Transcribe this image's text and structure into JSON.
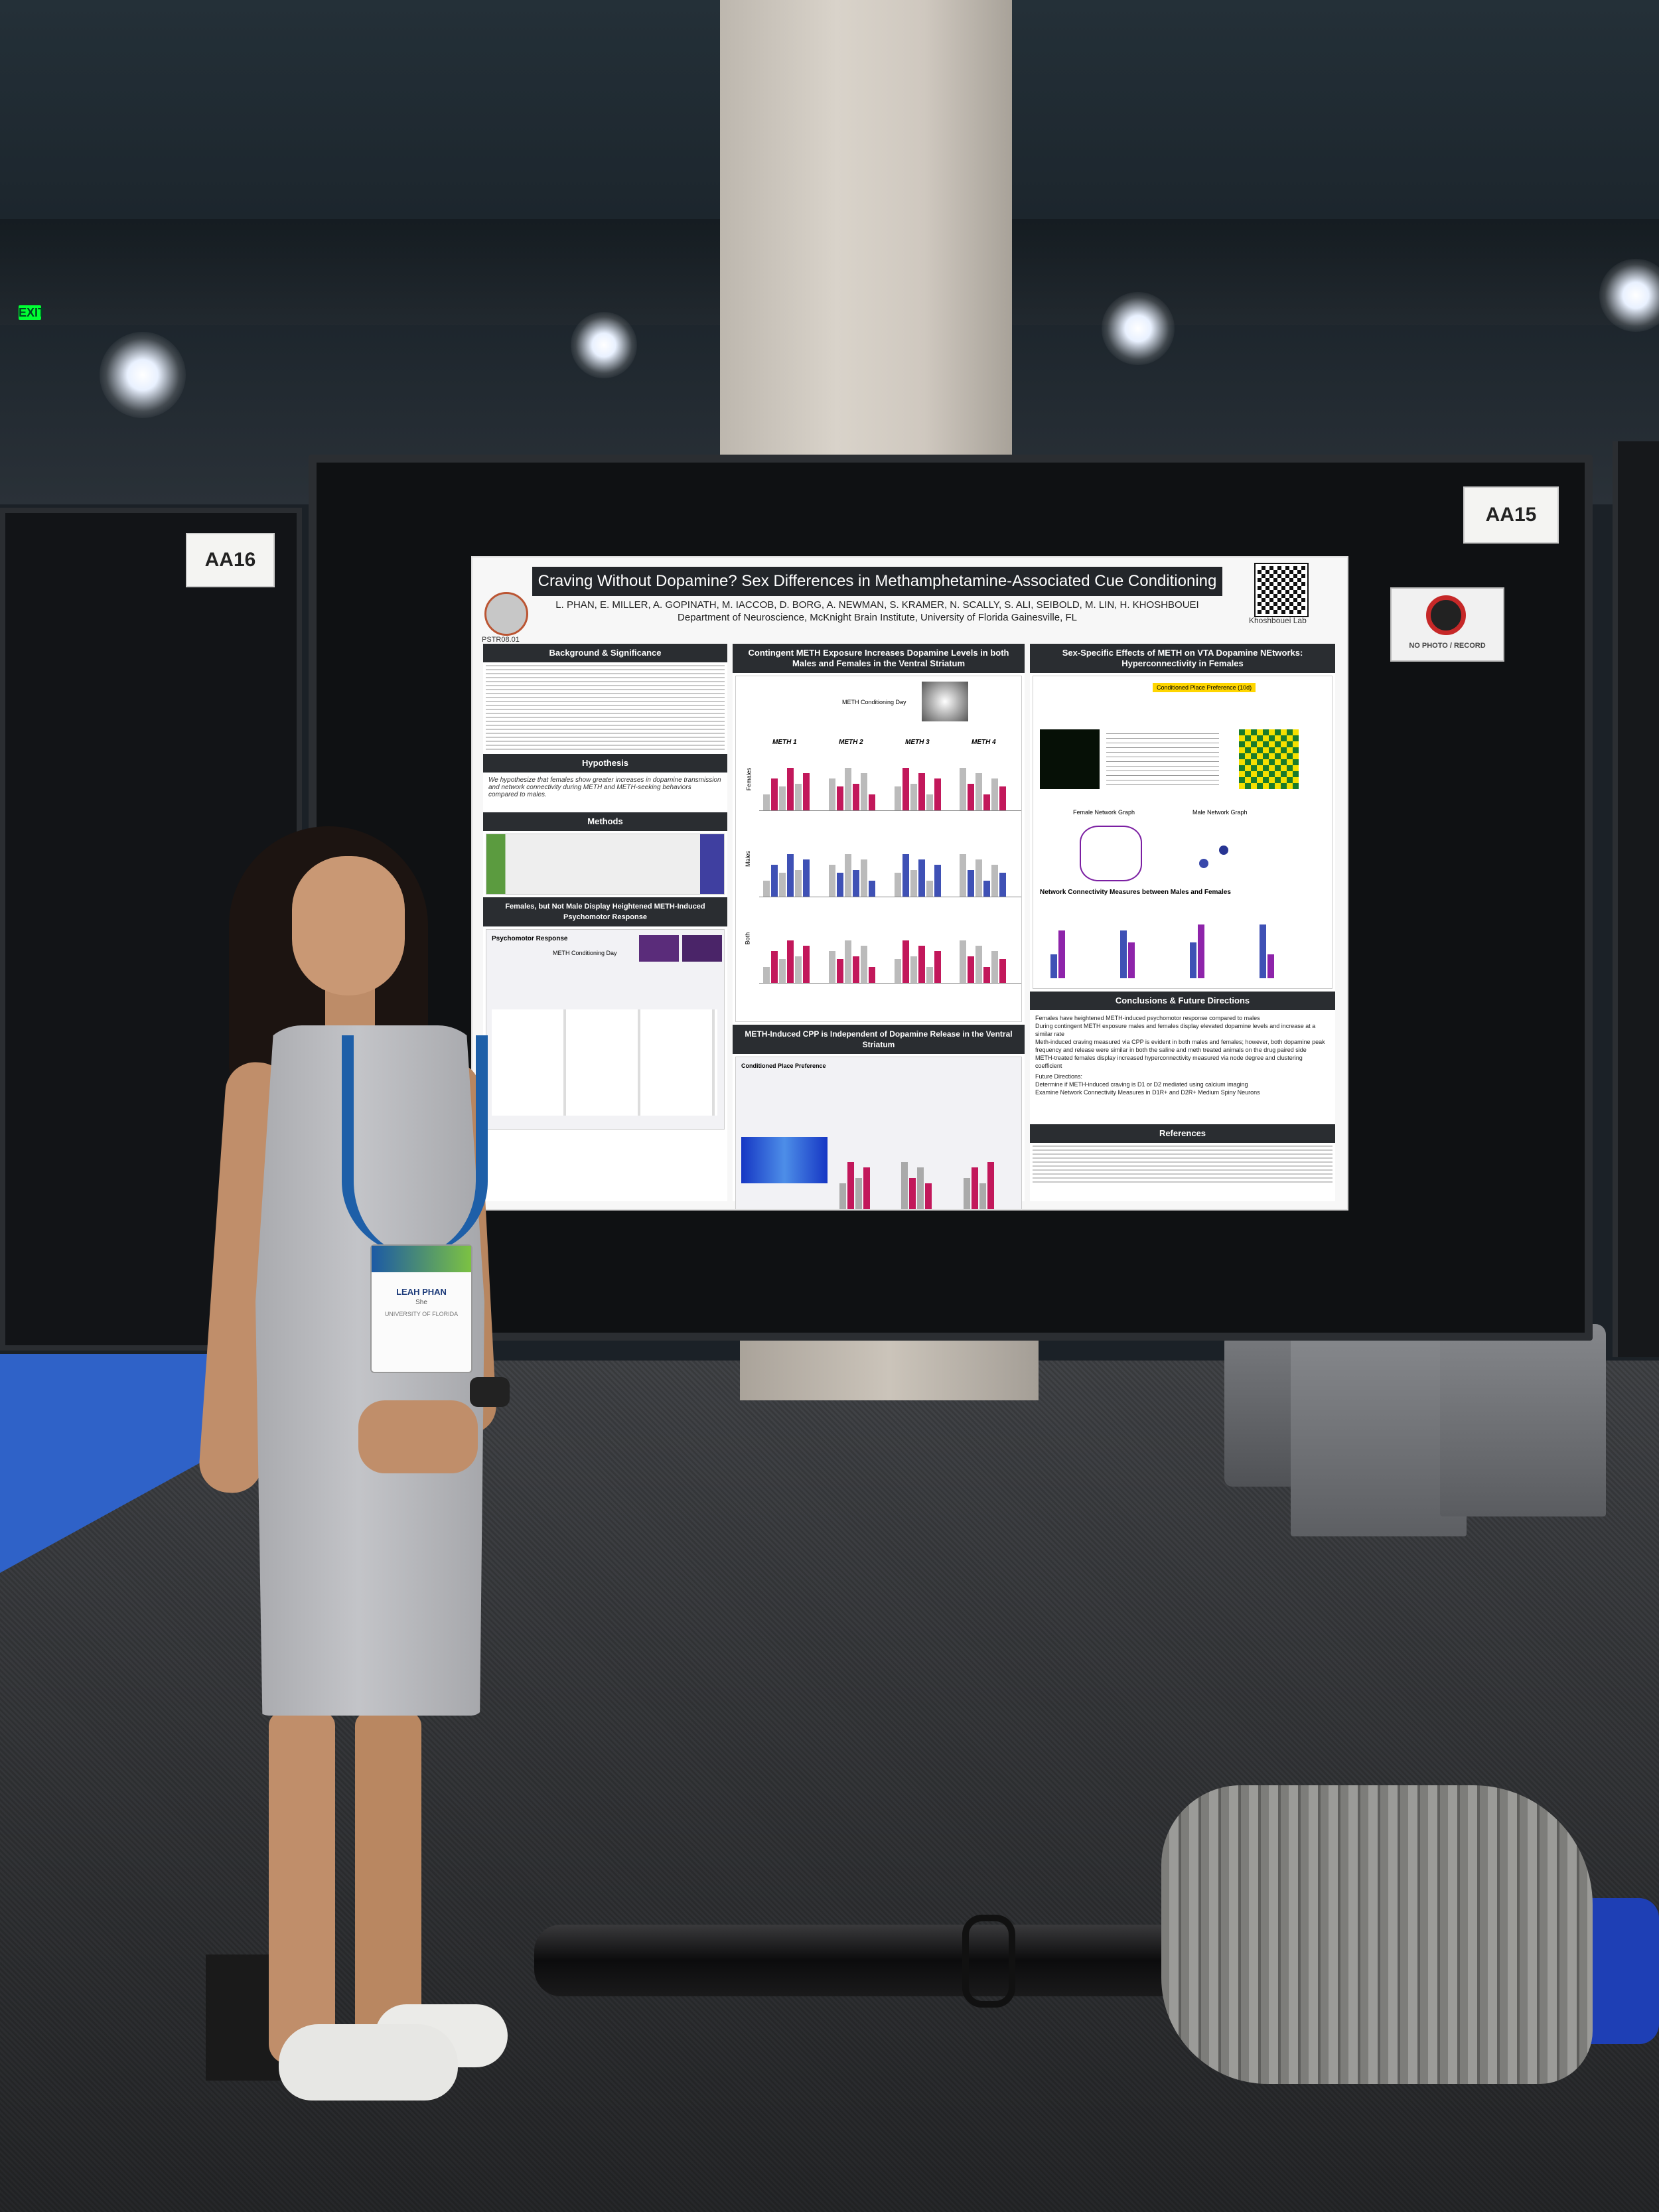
{
  "booths": {
    "left_label": "AA16",
    "right_label": "AA15"
  },
  "exit_sign": "EXIT",
  "no_photo_sign": "NO PHOTO / RECORD",
  "poster": {
    "id": "PSTR08.01",
    "title": "Craving Without Dopamine? Sex Differences in Methamphetamine-Associated Cue Conditioning",
    "authors": "L. PHAN, E. MILLER, A. GOPINATH, M. IACCOB, D. BORG, A. NEWMAN, S. KRAMER, N. SCALLY, S. ALI, SEIBOLD, M. LIN, H. KHOSHBOUEI",
    "department": "Department of Neuroscience, McKnight Brain Institute, University of Florida Gainesville, FL",
    "lab": "Khoshbouei Lab",
    "sections": {
      "background": "Background & Significance",
      "hypothesis": "Hypothesis",
      "methods": "Methods",
      "psychomotor": "Females, but Not Male Display Heightened METH-Induced Psychomotor Response",
      "contingent": "Contingent METH Exposure Increases Dopamine Levels in both Males and Females in the Ventral Striatum",
      "cpp": "METH-Induced CPP is Independent of Dopamine Release in the Ventral Striatum",
      "networks": "Sex-Specific Effects of METH on VTA Dopamine NEtworks: Hyperconnectivity in Females",
      "conclusions": "Conclusions & Future Directions",
      "references": "References"
    },
    "panel_labels": {
      "meth_days": [
        "METH 1",
        "METH 2",
        "METH 3",
        "METH 4"
      ],
      "rows": [
        "Females",
        "Males",
        "Both"
      ],
      "conditioning_day": "METH Conditioning Day",
      "network_measures": "Network Connectivity Measures between Males and Females",
      "female_graph": "Female Network Graph",
      "male_graph": "Male Network Graph",
      "timeline_step": "Conditioned Place Preference (10d)",
      "cpp_label": "Conditioned Place Preference",
      "psychomotor_label": "Psychomotor Response"
    },
    "hypothesis_text": "We hypothesize that females show greater increases in dopamine transmission and network connectivity during METH and METH-seeking behaviors compared to males.",
    "conclusions_text": [
      "Females have heightened METH-induced psychomotor response compared to males",
      "During contingent METH exposure males and females display elevated dopamine levels and increase at a similar rate",
      "Meth-induced craving measured via CPP is evident in both males and females; however, both dopamine peak frequency and release were similar in both the saline and meth treated animals on the drug paired side",
      "METH-treated females display increased hyperconnectivity measured via node degree and clustering coefficient"
    ],
    "future_title": "Future Directions:",
    "future_text": [
      "Determine if METH-induced craving is D1 or D2 mediated using calcium imaging",
      "Examine Network Connectivity Measures in D1R+ and D2R+ Medium Spiny Neurons"
    ]
  },
  "badge": {
    "name": "LEAH PHAN",
    "pronoun": "She",
    "org": "UNIVERSITY OF FLORIDA"
  },
  "colors": {
    "accent_female": "#c2185b",
    "accent_male": "#3f51b5",
    "dark_header": "#2a2d31",
    "poster_bg": "#f7f7f7"
  }
}
